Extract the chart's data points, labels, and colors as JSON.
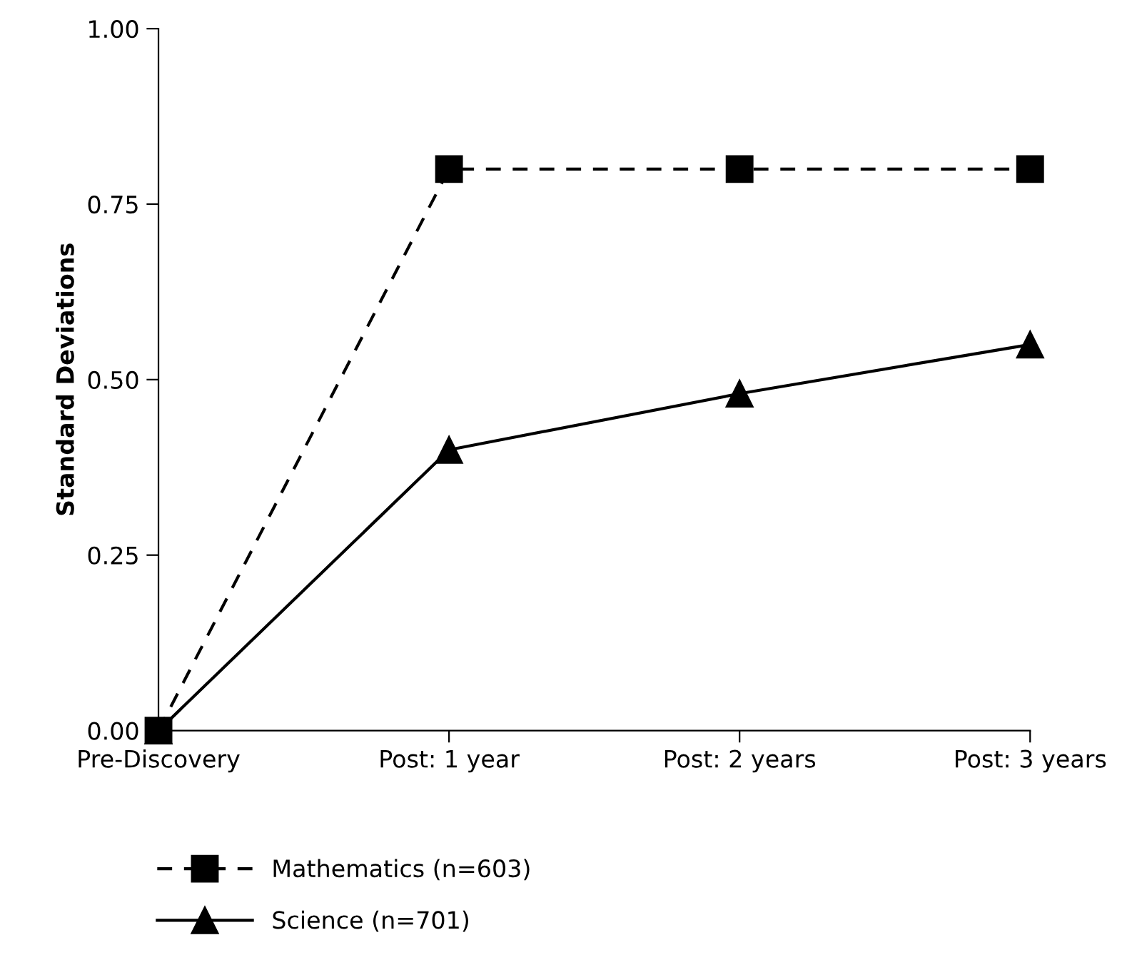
{
  "chart_data": {
    "type": "line",
    "ylabel": "Standard Deviations",
    "categories": [
      "Pre-Discovery",
      "Post: 1 year",
      "Post: 2 years",
      "Post: 3 years"
    ],
    "series": [
      {
        "name": "Mathematics (n=603)",
        "color": "#000000",
        "values": [
          0,
          0.8,
          0.8,
          0.8
        ],
        "marker": "square",
        "line_style": "dashed"
      },
      {
        "name": "Science (n=701)",
        "color": "#000000",
        "values": [
          0,
          0.4,
          0.48,
          0.55
        ],
        "marker": "triangle",
        "line_style": "solid"
      }
    ],
    "ylim": [
      0,
      1.0
    ],
    "yticks": [
      {
        "value": 0,
        "label": "0.00"
      },
      {
        "value": 0.25,
        "label": "0.25"
      },
      {
        "value": 0.5,
        "label": "0.50"
      },
      {
        "value": 0.75,
        "label": "0.75"
      },
      {
        "value": 1.0,
        "label": "1.00"
      }
    ],
    "grid": false,
    "legend": "bottom left"
  }
}
